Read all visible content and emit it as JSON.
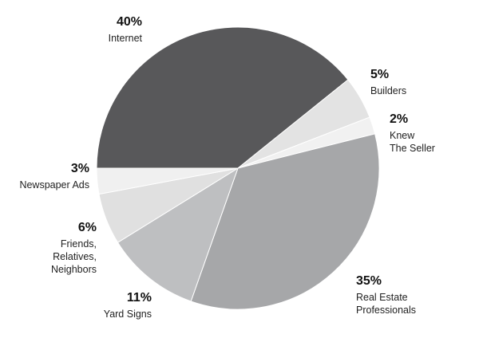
{
  "chart_data": {
    "type": "pie",
    "slices": [
      {
        "label": "Internet",
        "value": 40,
        "value_label": "40%",
        "color": "#58585a"
      },
      {
        "label": "Builders",
        "value": 5,
        "value_label": "5%",
        "color": "#e3e3e3"
      },
      {
        "label": "Knew The Seller",
        "label_lines": [
          "Knew",
          "The Seller"
        ],
        "value": 2,
        "value_label": "2%",
        "color": "#f1f1f1"
      },
      {
        "label": "Real Estate Professionals",
        "label_lines": [
          "Real Estate",
          "Professionals"
        ],
        "value": 35,
        "value_label": "35%",
        "color": "#a6a7a9"
      },
      {
        "label": "Yard Signs",
        "value": 11,
        "value_label": "11%",
        "color": "#bebfc1"
      },
      {
        "label": "Friends, Relatives, Neighbors",
        "label_lines": [
          "Friends,",
          "Relatives,",
          "Neighbors"
        ],
        "value": 6,
        "value_label": "6%",
        "color": "#e0e0e0"
      },
      {
        "label": "Newspaper Ads",
        "value": 3,
        "value_label": "3%",
        "color": "#f0f0f0"
      }
    ]
  }
}
